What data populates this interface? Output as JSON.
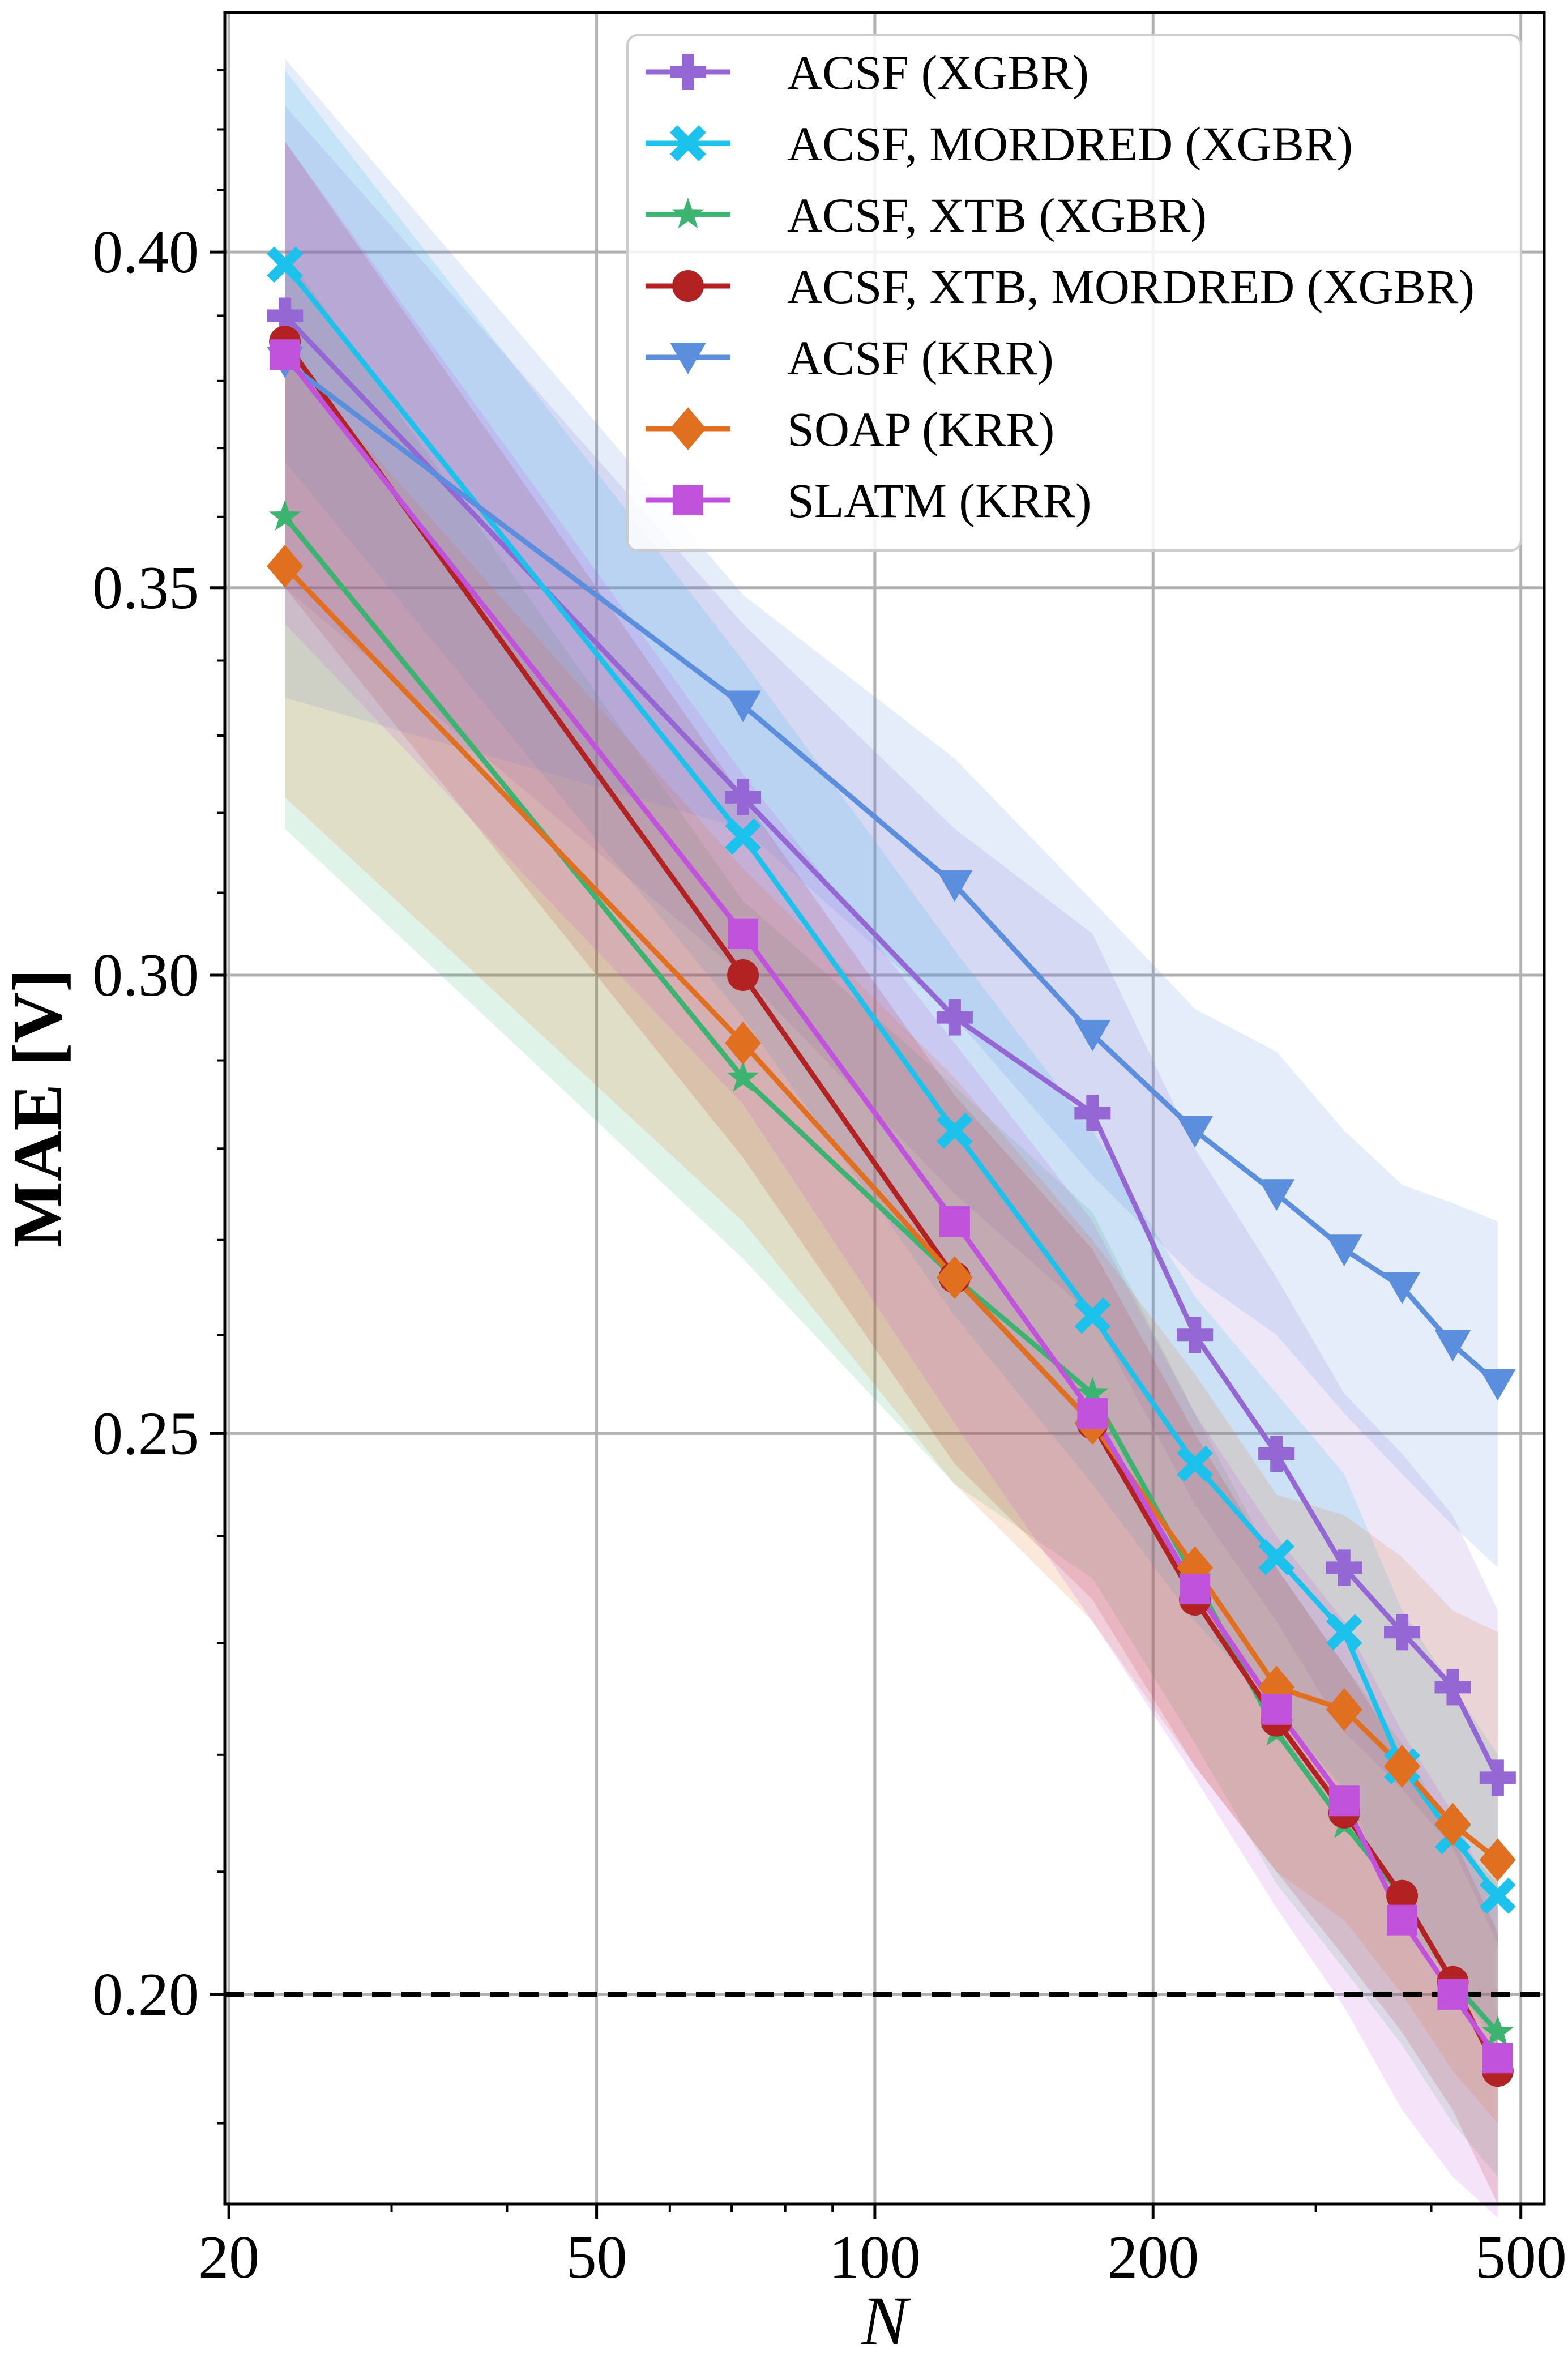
{
  "chart_data": {
    "type": "line",
    "xscale": "log",
    "yscale": "log",
    "xlabel": "N",
    "ylabel": "MAE [V]",
    "xlim": [
      19.8,
      530
    ],
    "ylim": [
      0.184,
      0.44
    ],
    "xticks": [
      {
        "value": 20,
        "label": "20"
      },
      {
        "value": 50,
        "label": "50"
      },
      {
        "value": 100,
        "label": "100"
      },
      {
        "value": 200,
        "label": "200"
      },
      {
        "value": 500,
        "label": "500"
      }
    ],
    "yticks": [
      {
        "value": 0.2,
        "label": "0.20"
      },
      {
        "value": 0.25,
        "label": "0.25"
      },
      {
        "value": 0.3,
        "label": "0.30"
      },
      {
        "value": 0.35,
        "label": "0.35"
      },
      {
        "value": 0.4,
        "label": "0.40"
      }
    ],
    "grid": true,
    "legend_position": "top-right",
    "reference_line": {
      "y": 0.2,
      "style": "dashed",
      "color": "#000000"
    },
    "series": [
      {
        "name": "ACSF (XGBR)",
        "color": "#9467d4",
        "marker": "plus",
        "x": [
          23,
          72,
          122,
          172,
          222,
          272,
          322,
          372,
          422,
          472
        ],
        "values": [
          0.39,
          0.322,
          0.295,
          0.284,
          0.26,
          0.248,
          0.237,
          0.231,
          0.226,
          0.218
        ],
        "lower": [
          0.35,
          0.3,
          0.275,
          0.262,
          0.243,
          0.232,
          0.222,
          0.217,
          0.212,
          0.204
        ],
        "upper": [
          0.424,
          0.345,
          0.318,
          0.305,
          0.28,
          0.266,
          0.254,
          0.248,
          0.242,
          0.233
        ]
      },
      {
        "name": "ACSF, MORDRED (XGBR)",
        "color": "#1cc1ec",
        "marker": "x",
        "x": [
          23,
          72,
          122,
          172,
          222,
          272,
          322,
          372,
          422,
          472
        ],
        "values": [
          0.398,
          0.317,
          0.282,
          0.262,
          0.247,
          0.238,
          0.231,
          0.219,
          0.213,
          0.208
        ],
        "lower": [
          0.368,
          0.295,
          0.262,
          0.245,
          0.232,
          0.224,
          0.217,
          0.206,
          0.201,
          0.196
        ],
        "upper": [
          0.43,
          0.34,
          0.303,
          0.282,
          0.264,
          0.254,
          0.246,
          0.233,
          0.226,
          0.22
        ]
      },
      {
        "name": "ACSF, XTB (XGBR)",
        "color": "#3cb371",
        "marker": "star",
        "x": [
          23,
          72,
          122,
          172,
          222,
          272,
          322,
          372,
          422,
          472
        ],
        "values": [
          0.36,
          0.288,
          0.266,
          0.254,
          0.236,
          0.222,
          0.214,
          0.208,
          0.201,
          0.197
        ],
        "lower": [
          0.318,
          0.268,
          0.245,
          0.236,
          0.221,
          0.209,
          0.202,
          0.196,
          0.19,
          0.186
        ],
        "upper": [
          0.4,
          0.309,
          0.287,
          0.273,
          0.252,
          0.237,
          0.228,
          0.221,
          0.213,
          0.209
        ]
      },
      {
        "name": "ACSF, XTB, MORDRED (XGBR)",
        "color": "#b22222",
        "marker": "circle",
        "x": [
          23,
          72,
          122,
          172,
          222,
          272,
          322,
          372,
          422,
          472
        ],
        "values": [
          0.386,
          0.3,
          0.266,
          0.251,
          0.234,
          0.223,
          0.215,
          0.208,
          0.201,
          0.194
        ],
        "lower": [
          0.35,
          0.279,
          0.247,
          0.234,
          0.219,
          0.21,
          0.203,
          0.197,
          0.191,
          0.184
        ],
        "upper": [
          0.418,
          0.322,
          0.286,
          0.269,
          0.25,
          0.237,
          0.228,
          0.22,
          0.213,
          0.205
        ]
      },
      {
        "name": "ACSF (KRR)",
        "color": "#5b8fdd",
        "marker": "triangle-down",
        "x": [
          23,
          72,
          122,
          172,
          222,
          272,
          322,
          372,
          422,
          472
        ],
        "values": [
          0.383,
          0.334,
          0.311,
          0.293,
          0.282,
          0.275,
          0.269,
          0.265,
          0.259,
          0.255
        ],
        "lower": [
          0.335,
          0.318,
          0.295,
          0.277,
          0.266,
          0.26,
          0.252,
          0.246,
          0.241,
          0.237
        ],
        "upper": [
          0.432,
          0.349,
          0.327,
          0.309,
          0.296,
          0.291,
          0.282,
          0.276,
          0.274,
          0.272
        ]
      },
      {
        "name": "SOAP (KRR)",
        "color": "#e07020",
        "marker": "diamond",
        "x": [
          23,
          72,
          122,
          172,
          222,
          272,
          322,
          372,
          422,
          472
        ],
        "values": [
          0.353,
          0.292,
          0.266,
          0.251,
          0.237,
          0.226,
          0.224,
          0.219,
          0.214,
          0.211
        ],
        "lower": [
          0.322,
          0.272,
          0.245,
          0.232,
          0.219,
          0.21,
          0.206,
          0.2,
          0.194,
          0.19
        ],
        "upper": [
          0.384,
          0.313,
          0.288,
          0.27,
          0.256,
          0.244,
          0.242,
          0.238,
          0.233,
          0.231
        ]
      },
      {
        "name": "SLATM (KRR)",
        "color": "#c052dc",
        "marker": "square",
        "x": [
          23,
          72,
          122,
          172,
          222,
          272,
          322,
          372,
          422,
          472
        ],
        "values": [
          0.384,
          0.305,
          0.272,
          0.252,
          0.235,
          0.224,
          0.216,
          0.206,
          0.2,
          0.195
        ],
        "lower": [
          0.345,
          0.285,
          0.251,
          0.232,
          0.218,
          0.207,
          0.199,
          0.191,
          0.186,
          0.183
        ],
        "upper": [
          0.418,
          0.325,
          0.292,
          0.272,
          0.252,
          0.24,
          0.232,
          0.222,
          0.215,
          0.207
        ]
      }
    ]
  }
}
